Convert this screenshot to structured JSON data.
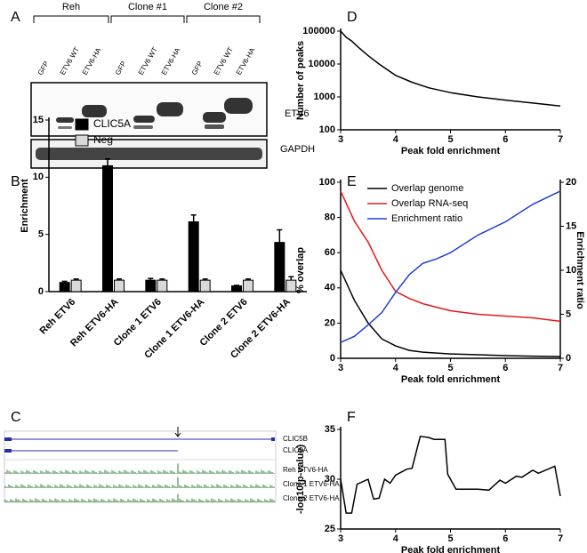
{
  "figure": {
    "panel_labels": [
      "A",
      "B",
      "C",
      "D",
      "E",
      "F"
    ],
    "blot": {
      "groups": [
        "Reh",
        "Clone #1",
        "Clone #2"
      ],
      "lanes": [
        "GFP",
        "ETV6 WT",
        "ETV6-HA",
        "GFP",
        "ETV6 WT",
        "ETV6-HA",
        "GFP",
        "ETV6 WT",
        "ETV6-HA"
      ],
      "proteins": [
        "ETV6",
        "GAPDH"
      ]
    },
    "tracks": {
      "genes": [
        "CLIC5B",
        "CLIC5A"
      ],
      "samples": [
        "Reh ETV6-HA",
        "Clone 1 ETV6-HA",
        "Clone 2 ETV6-HA"
      ]
    }
  },
  "chart_data": [
    {
      "type": "bar",
      "y_label": "Enrichment",
      "categories": [
        "Reh ETV6",
        "Reh ETV6-HA",
        "Clone 1 ETV6",
        "Clone 1 ETV6-HA",
        "Clone 2 ETV6",
        "Clone 2 ETV6-HA"
      ],
      "series": [
        {
          "name": "CLIC5A",
          "color": "#000000",
          "values": [
            0.8,
            11.0,
            1.0,
            6.1,
            0.5,
            4.3
          ],
          "errors": [
            0.1,
            0.6,
            0.15,
            0.6,
            0.05,
            1.1
          ]
        },
        {
          "name": "Neg",
          "color": "#d9d9d9",
          "values": [
            1.0,
            1.0,
            1.0,
            1.0,
            1.0,
            1.0
          ],
          "errors": [
            0.1,
            0.1,
            0.1,
            0.1,
            0.1,
            0.3
          ]
        }
      ],
      "ylim": [
        0,
        15
      ],
      "yticks": [
        0,
        5,
        10,
        15
      ],
      "legend": "upper left"
    },
    {
      "type": "line",
      "x_label": "Peak fold enrichment",
      "y_label": "Number of peaks",
      "log_y": true,
      "x": [
        3,
        3.1,
        3.2,
        3.3,
        3.5,
        3.7,
        4,
        4.3,
        4.6,
        5,
        5.5,
        6,
        6.5,
        7
      ],
      "series": [
        {
          "name": null,
          "color": "#000000",
          "values": [
            100000,
            65000,
            50000,
            35000,
            18000,
            10000,
            4500,
            2800,
            1900,
            1350,
            1000,
            800,
            650,
            530
          ]
        }
      ],
      "xlim": [
        3,
        7
      ],
      "xticks": [
        3,
        4,
        5,
        6,
        7
      ],
      "ylim": [
        100,
        100000
      ],
      "yticks": [
        100,
        1000,
        10000,
        100000
      ]
    },
    {
      "type": "line",
      "x_label": "Peak fold enrichment",
      "y_label": "% overlap",
      "y2_label": "Enrichment ratio",
      "x": [
        3,
        3.25,
        3.5,
        3.75,
        4,
        4.25,
        4.5,
        4.75,
        5,
        5.5,
        6,
        6.5,
        7
      ],
      "series": [
        {
          "name": "Overlap genome",
          "color": "#000000",
          "values": [
            50,
            33,
            20,
            11,
            7,
            4.5,
            3.5,
            3,
            2.5,
            2,
            1.5,
            1.2,
            1
          ]
        },
        {
          "name": "Overlap RNA-seq",
          "color": "#e31a1c",
          "values": [
            95,
            78,
            66,
            50,
            38,
            34,
            31,
            29,
            27,
            25,
            24,
            23,
            21
          ]
        },
        {
          "name": "Enrichment ratio",
          "color": "#1f3fd6",
          "axis": "y2",
          "values": [
            1.8,
            2.5,
            3.8,
            5.2,
            7.5,
            9.5,
            10.8,
            11.3,
            12,
            14,
            15.5,
            17.5,
            19
          ]
        }
      ],
      "xlim": [
        3,
        7
      ],
      "xticks": [
        3,
        4,
        5,
        6,
        7
      ],
      "ylim": [
        0,
        100
      ],
      "yticks": [
        0,
        20,
        40,
        60,
        80,
        100
      ],
      "y2lim": [
        0,
        20
      ],
      "y2ticks": [
        0,
        5,
        10,
        15,
        20
      ],
      "legend": "upper left"
    },
    {
      "type": "line",
      "x_label": "Peak fold enrichment",
      "y_label": "-log10(p-value)",
      "x": [
        3,
        3.1,
        3.2,
        3.3,
        3.5,
        3.6,
        3.7,
        3.8,
        3.9,
        4,
        4.2,
        4.3,
        4.45,
        4.6,
        4.7,
        4.9,
        4.95,
        5.1,
        5.5,
        5.7,
        5.9,
        6,
        6.2,
        6.3,
        6.5,
        6.6,
        6.9,
        7
      ],
      "series": [
        {
          "name": null,
          "color": "#000000",
          "values": [
            30,
            26.6,
            26.6,
            29.5,
            30,
            28,
            28.1,
            30,
            29.6,
            30.4,
            31,
            31.1,
            34.3,
            34.2,
            34,
            34,
            30.5,
            29,
            29,
            28.9,
            29.9,
            29.6,
            30.3,
            30.2,
            30.9,
            30.6,
            31.3,
            28.3
          ]
        }
      ],
      "xlim": [
        3,
        7
      ],
      "xticks": [
        3,
        4,
        5,
        6,
        7
      ],
      "ylim": [
        25,
        35
      ],
      "yticks": [
        25,
        30,
        35
      ]
    }
  ]
}
